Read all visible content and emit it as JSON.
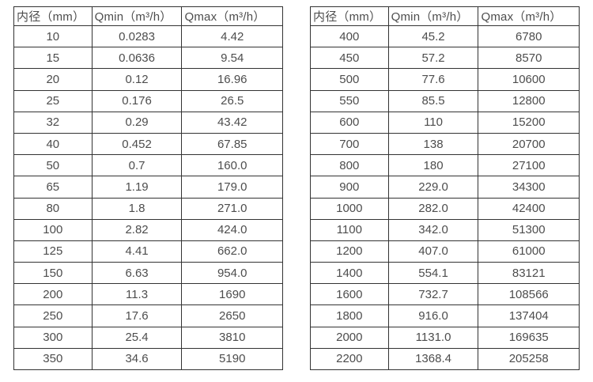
{
  "styles": {
    "border_color": "#333333",
    "text_color": "#4d4d4d",
    "background_color": "#ffffff"
  },
  "chart_data": [
    {
      "type": "table",
      "title": "",
      "columns": [
        "内径（mm）",
        "Qmin（m³/h）",
        "Qmax（m³/h）"
      ],
      "rows": [
        [
          "10",
          "0.0283",
          "4.42"
        ],
        [
          "15",
          "0.0636",
          "9.54"
        ],
        [
          "20",
          "0.12",
          "16.96"
        ],
        [
          "25",
          "0.176",
          "26.5"
        ],
        [
          "32",
          "0.29",
          "43.42"
        ],
        [
          "40",
          "0.452",
          "67.85"
        ],
        [
          "50",
          "0.7",
          "160.0"
        ],
        [
          "65",
          "1.19",
          "179.0"
        ],
        [
          "80",
          "1.8",
          "271.0"
        ],
        [
          "100",
          "2.82",
          "424.0"
        ],
        [
          "125",
          "4.41",
          "662.0"
        ],
        [
          "150",
          "6.63",
          "954.0"
        ],
        [
          "200",
          "11.3",
          "1690"
        ],
        [
          "250",
          "17.6",
          "2650"
        ],
        [
          "300",
          "25.4",
          "3810"
        ],
        [
          "350",
          "34.6",
          "5190"
        ]
      ]
    },
    {
      "type": "table",
      "title": "",
      "columns": [
        "内径（mm）",
        "Qmin（m³/h）",
        "Qmax（m³/h）"
      ],
      "rows": [
        [
          "400",
          "45.2",
          "6780"
        ],
        [
          "450",
          "57.2",
          "8570"
        ],
        [
          "500",
          "77.6",
          "10600"
        ],
        [
          "550",
          "85.5",
          "12800"
        ],
        [
          "600",
          "110",
          "15200"
        ],
        [
          "700",
          "138",
          "20700"
        ],
        [
          "800",
          "180",
          "27100"
        ],
        [
          "900",
          "229.0",
          "34300"
        ],
        [
          "1000",
          "282.0",
          "42400"
        ],
        [
          "1100",
          "342.0",
          "51300"
        ],
        [
          "1200",
          "407.0",
          "61000"
        ],
        [
          "1400",
          "554.1",
          "83121"
        ],
        [
          "1600",
          "732.7",
          "108566"
        ],
        [
          "1800",
          "916.0",
          "137404"
        ],
        [
          "2000",
          "1131.0",
          "169635"
        ],
        [
          "2200",
          "1368.4",
          "205258"
        ]
      ]
    }
  ]
}
